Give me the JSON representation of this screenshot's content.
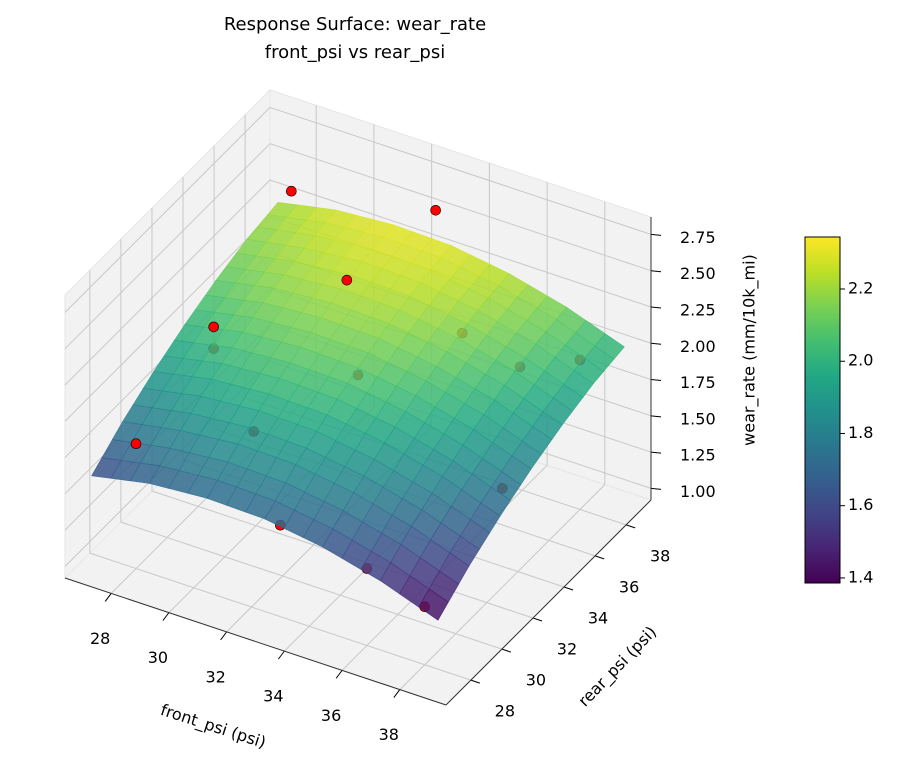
{
  "chart_data": {
    "type": "surface3d",
    "title": "Response Surface: wear_rate",
    "subtitle": "front_psi vs rear_psi",
    "xlabel": "front_psi (psi)",
    "ylabel": "rear_psi (psi)",
    "zlabel": "wear_rate (mm/10k_mi)",
    "xlim": [
      26.4,
      39.6
    ],
    "ylim": [
      26.4,
      39.6
    ],
    "zlim": [
      0.92,
      2.87
    ],
    "xticks": [
      28,
      30,
      32,
      34,
      36,
      38
    ],
    "yticks": [
      28,
      30,
      32,
      34,
      36,
      38
    ],
    "zticks": [
      {
        "value": 1,
        "label": "1.00"
      },
      {
        "value": 1.25,
        "label": "1.25"
      },
      {
        "value": 1.5,
        "label": "1.50"
      },
      {
        "value": 1.75,
        "label": "1.75"
      },
      {
        "value": 2,
        "label": "2.00"
      },
      {
        "value": 2.25,
        "label": "2.25"
      },
      {
        "value": 2.5,
        "label": "2.50"
      },
      {
        "value": 2.75,
        "label": "2.75"
      }
    ],
    "grid": true,
    "surface": {
      "colormap": "viridis",
      "alpha": 0.85,
      "x": [
        27,
        29,
        31,
        33,
        35,
        37,
        39
      ],
      "y": [
        27,
        29,
        31,
        33,
        35,
        37,
        39
      ],
      "z": [
        [
          1.6,
          1.68,
          1.71,
          1.7,
          1.64,
          1.54,
          1.4
        ],
        [
          1.76,
          1.83,
          1.87,
          1.86,
          1.8,
          1.7,
          1.56
        ],
        [
          1.89,
          1.97,
          2.0,
          1.99,
          1.93,
          1.83,
          1.69
        ],
        [
          2.0,
          2.08,
          2.11,
          2.1,
          2.04,
          1.94,
          1.8
        ],
        [
          2.09,
          2.17,
          2.2,
          2.19,
          2.13,
          2.03,
          1.89
        ],
        [
          2.16,
          2.23,
          2.27,
          2.26,
          2.2,
          2.1,
          1.96
        ],
        [
          2.2,
          2.28,
          2.31,
          2.3,
          2.24,
          2.14,
          2.0
        ]
      ]
    },
    "scatter": {
      "color": "#ff0000",
      "x": [
        28,
        38,
        28,
        33,
        28,
        28,
        31,
        33,
        36,
        31,
        33,
        35,
        37,
        38,
        38
      ],
      "y": [
        28,
        28,
        38,
        38,
        33,
        33,
        30,
        28,
        28,
        36,
        33,
        36,
        36,
        38,
        33
      ],
      "z": [
        1.78,
        1.32,
        2.45,
        2.65,
        2.05,
        1.9,
        1.85,
        1.55,
        1.45,
        2.25,
        2.05,
        2.15,
        2.05,
        1.95,
        1.6
      ]
    },
    "colorbar": {
      "lim": [
        1.386,
        2.344
      ],
      "ticks": [
        1.4,
        1.6,
        1.8,
        {
          "value": 2,
          "label": "2.0"
        },
        2.2
      ]
    }
  }
}
